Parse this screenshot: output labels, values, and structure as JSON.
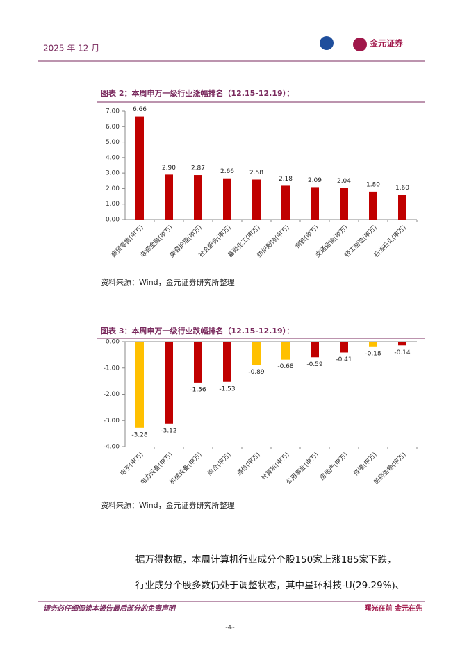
{
  "header": {
    "date": "2025 年 12 月",
    "logo_text": "金元证券"
  },
  "figures": [
    {
      "title": "图表 2：本周申万一级行业涨幅排名（12.15-12.19）：",
      "source": "资料来源：Wind，金元证券研究所整理"
    },
    {
      "title": "图表 3：本周申万一级行业跌幅排名（12.15-12.19）：",
      "source": "资料来源：Wind，金元证券研究所整理"
    }
  ],
  "chart_data": [
    {
      "type": "bar",
      "categories": [
        "商贸零售(申万)",
        "非银金融(申万)",
        "美容护理(申万)",
        "社会服务(申万)",
        "基础化工(申万)",
        "纺织服饰(申万)",
        "钢铁(申万)",
        "交通运输(申万)",
        "轻工制造(申万)",
        "石油石化(申万)"
      ],
      "values": [
        6.66,
        2.9,
        2.87,
        2.66,
        2.58,
        2.18,
        2.09,
        2.04,
        1.8,
        1.6
      ],
      "value_labels": [
        "6.66",
        "2.90",
        "2.87",
        "2.66",
        "2.58",
        "2.18",
        "2.09",
        "2.04",
        "1.80",
        "1.60"
      ],
      "color": "#c00000",
      "ylim": [
        0,
        7
      ],
      "yticks": [
        {
          "value": 0,
          "label": "0.00"
        },
        {
          "value": 1,
          "label": "1.00"
        },
        {
          "value": 2,
          "label": "2.00"
        },
        {
          "value": 3,
          "label": "3.00"
        },
        {
          "value": 4,
          "label": "4.00"
        },
        {
          "value": 5,
          "label": "5.00"
        },
        {
          "value": 6,
          "label": "6.00"
        },
        {
          "value": 7,
          "label": "7.00"
        }
      ]
    },
    {
      "type": "bar",
      "categories": [
        "电子(申万)",
        "电力设备(申万)",
        "机械设备(申万)",
        "综合(申万)",
        "通信(申万)",
        "计算机(申万)",
        "公用事业(申万)",
        "房地产(申万)",
        "传媒(申万)",
        "医药生物(申万)"
      ],
      "values": [
        -3.28,
        -3.12,
        -1.56,
        -1.53,
        -0.89,
        -0.68,
        -0.59,
        -0.41,
        -0.18,
        -0.14
      ],
      "colors": [
        "#ffc000",
        "#c00000",
        "#c00000",
        "#c00000",
        "#ffc000",
        "#ffc000",
        "#c00000",
        "#c00000",
        "#ffc000",
        "#c00000"
      ],
      "ylim": [
        -4,
        0
      ],
      "yticks": [
        {
          "value": -4,
          "label": "-4.00"
        },
        {
          "value": -3,
          "label": "-3.00"
        },
        {
          "value": -2,
          "label": "-2.00"
        },
        {
          "value": -1,
          "label": "-1.00"
        },
        {
          "value": 0,
          "label": "0.00"
        }
      ]
    }
  ],
  "body": [
    "据万得数据，本周计算机行业成分个股150家上涨185家下跌，",
    "行业成分个股多数仍处于调整状态，其中星环科技-U(29.29%)、"
  ],
  "footer": {
    "disclaimer": "请务必仔细阅读本报告最后部分的免责声明",
    "slogan": "曙光在前 金元在先",
    "page": "-4-"
  }
}
